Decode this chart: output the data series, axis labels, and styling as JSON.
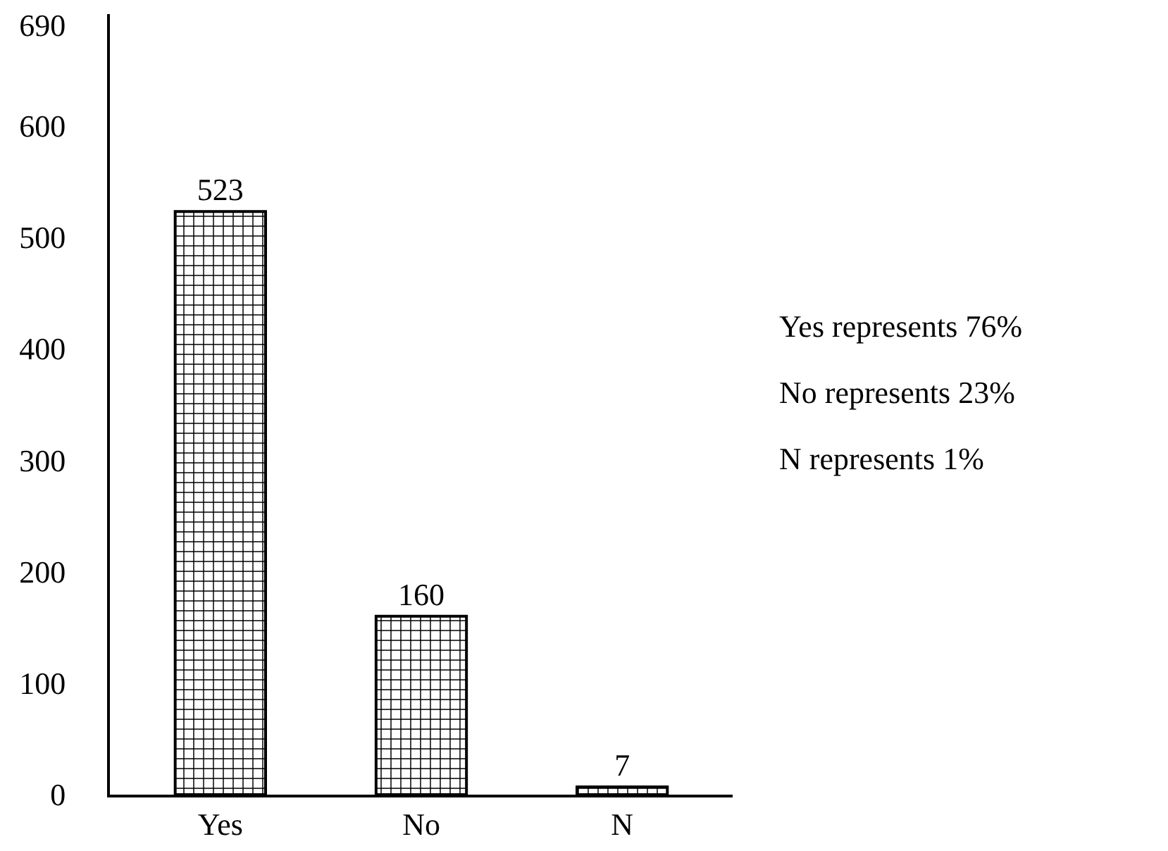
{
  "chart_data": {
    "type": "bar",
    "categories": [
      "Yes",
      "No",
      "N"
    ],
    "values": [
      523,
      160,
      7
    ],
    "color": "#000000",
    "data_labels": true,
    "ylim": [
      0,
      700
    ],
    "yticks": [
      0,
      100,
      200,
      300,
      400,
      500,
      600,
      690
    ],
    "grid": false,
    "legend": false,
    "annotations": [
      "Yes represents 76%",
      "No represents 23%",
      "N represents 1%"
    ]
  }
}
